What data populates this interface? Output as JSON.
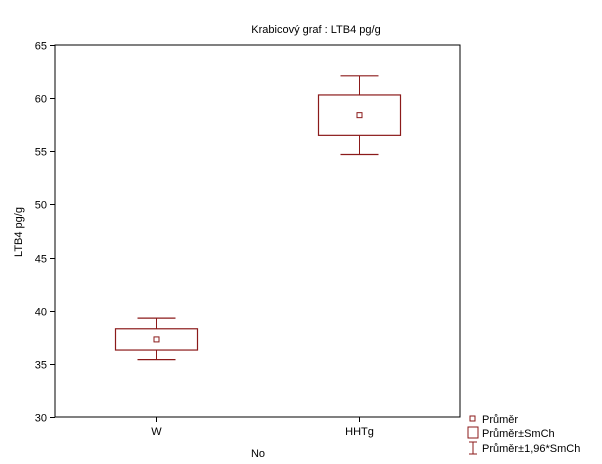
{
  "chart_data": {
    "type": "box",
    "title": "Krabicový  graf :  LTB4  pg/g",
    "xlabel": "No",
    "ylabel": "LTB4  pg/g",
    "ylim": [
      30,
      65
    ],
    "yticks": [
      30,
      35,
      40,
      45,
      50,
      55,
      60,
      65
    ],
    "grid": false,
    "categories": [
      "W",
      "HHTg"
    ],
    "boxes": [
      {
        "category": "W",
        "mean": 37.3,
        "se_low": 36.3,
        "se_high": 38.3,
        "ci_low": 35.4,
        "ci_high": 39.3
      },
      {
        "category": "HHTg",
        "mean": 58.4,
        "se_low": 56.5,
        "se_high": 60.3,
        "ci_low": 54.7,
        "ci_high": 62.1
      }
    ],
    "legend": {
      "position": "bottom-right",
      "items": [
        {
          "label": "Průměr",
          "marker": "mean"
        },
        {
          "label": "Průměr±SmCh",
          "marker": "box"
        },
        {
          "label": "Průměr±1,96*SmCh",
          "marker": "whisker"
        }
      ]
    },
    "color": "#8b1a1a"
  }
}
